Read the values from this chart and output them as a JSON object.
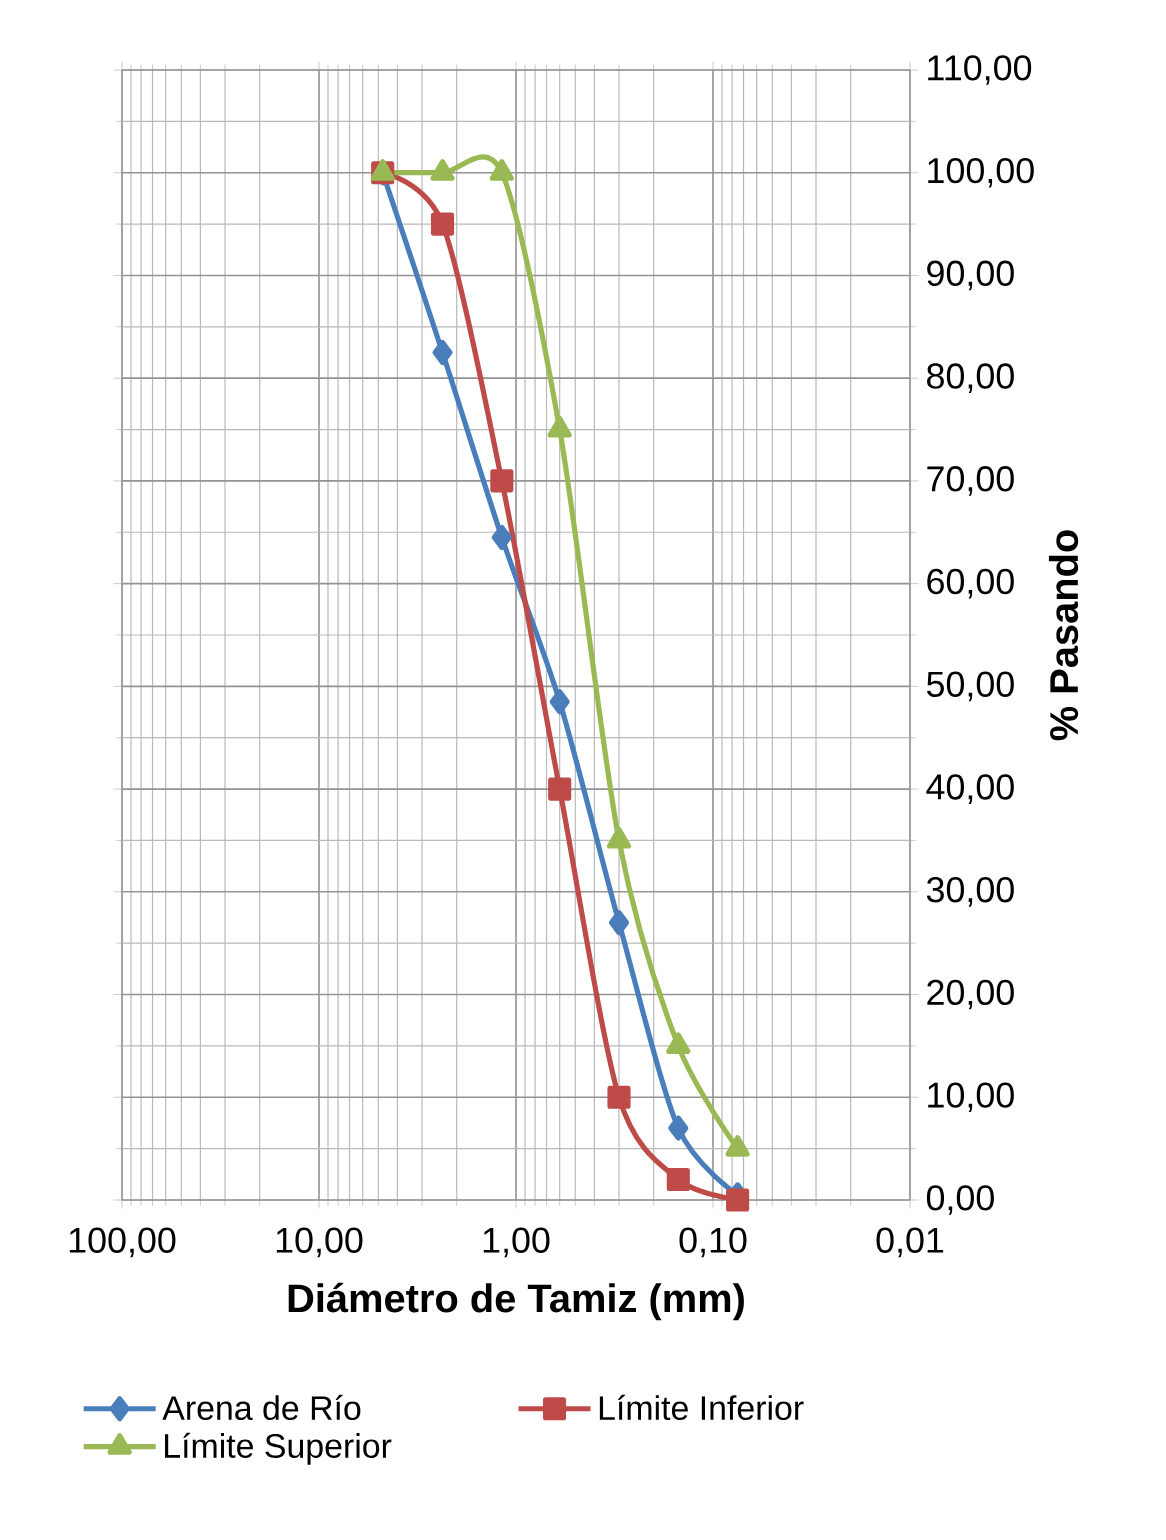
{
  "chart_data": {
    "type": "line",
    "xlabel": "Diámetro de Tamiz (mm)",
    "ylabel": "% Pasando",
    "log": "x",
    "grid": true,
    "legend": "bottom",
    "line_style": "solid",
    "x": [
      4.75,
      2.36,
      1.18,
      0.6,
      0.3,
      0.15,
      0.075
    ],
    "xlim": [
      100,
      0.01
    ],
    "xticks": [
      {
        "value": 100,
        "label": "100,00"
      },
      {
        "value": 10,
        "label": "10,00"
      },
      {
        "value": 1,
        "label": "1,00"
      },
      {
        "value": 0.1,
        "label": "0,10"
      },
      {
        "value": 0.01,
        "label": "0,01"
      }
    ],
    "ylim": [
      0,
      110
    ],
    "yticks": [
      {
        "value": 0,
        "label": "0,00"
      },
      {
        "value": 10,
        "label": "10,00"
      },
      {
        "value": 20,
        "label": "20,00"
      },
      {
        "value": 30,
        "label": "30,00"
      },
      {
        "value": 40,
        "label": "40,00"
      },
      {
        "value": 50,
        "label": "50,00"
      },
      {
        "value": 60,
        "label": "60,00"
      },
      {
        "value": 70,
        "label": "70,00"
      },
      {
        "value": 80,
        "label": "80,00"
      },
      {
        "value": 90,
        "label": "90,00"
      },
      {
        "value": 100,
        "label": "100,00"
      },
      {
        "value": 110,
        "label": "110,00"
      }
    ],
    "series": [
      {
        "name": "Arena de Río",
        "color": "#4a7ebb",
        "marker": "diamond",
        "values": [
          100,
          82.5,
          64.5,
          48.5,
          27,
          7,
          0.5
        ]
      },
      {
        "name": "Límite Inferior",
        "color": "#be4b48",
        "marker": "square",
        "values": [
          100,
          95,
          70,
          40,
          10,
          2,
          0
        ]
      },
      {
        "name": "Límite Superior",
        "color": "#98b954",
        "marker": "triangle",
        "values": [
          100,
          100,
          100,
          75,
          35,
          15,
          5
        ]
      }
    ]
  }
}
